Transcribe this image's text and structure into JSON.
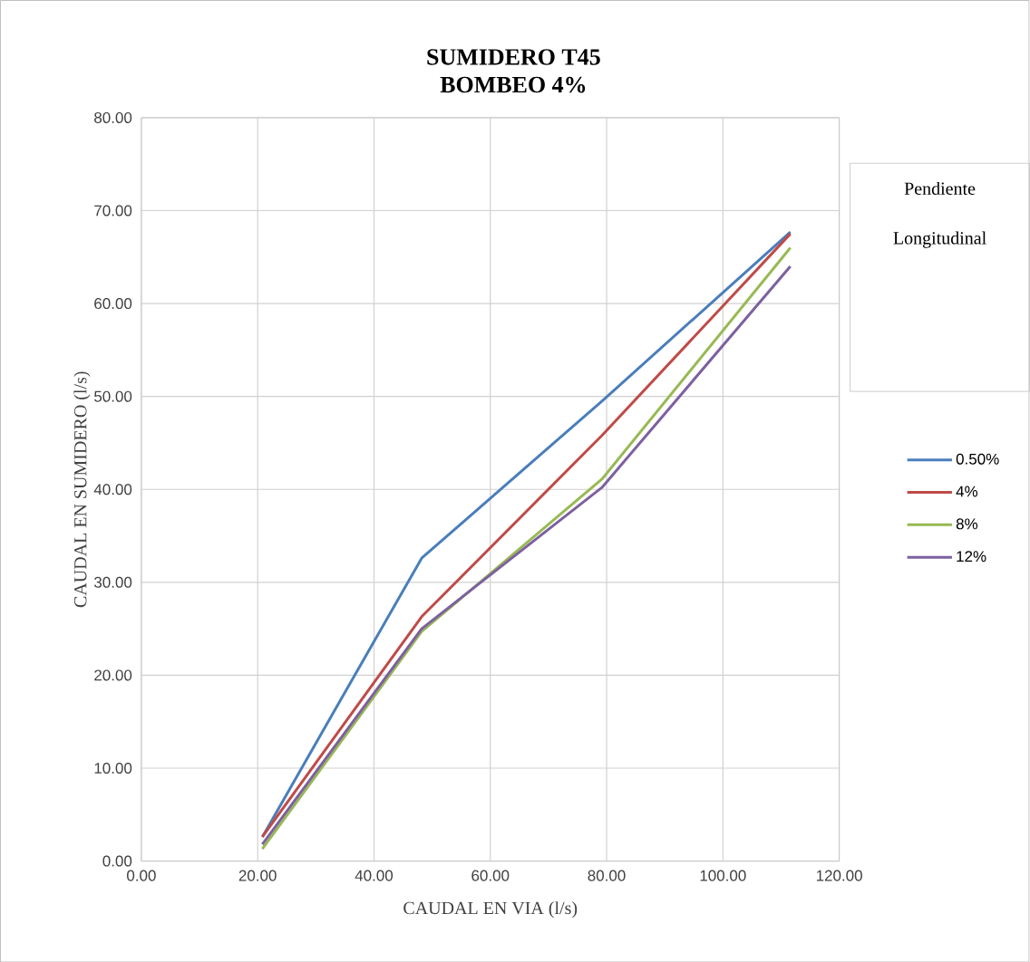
{
  "chart_data": {
    "type": "line",
    "title": "SUMIDERO T45",
    "subtitle": "BOMBEO 4%",
    "xlabel": "CAUDAL EN VIA (l/s)",
    "ylabel": "CAUDAL  EN SUMIDERO (l/s)",
    "legend_title": "Pendiente Longitudinal",
    "x": [
      20.8,
      48.2,
      79.2,
      111.6
    ],
    "series": [
      {
        "name": "0.50%",
        "color": "#4a7ebb",
        "values": [
          2.6,
          32.6,
          49.5,
          67.7
        ]
      },
      {
        "name": "4%",
        "color": "#be4b48",
        "values": [
          2.6,
          26.3,
          45.8,
          67.5
        ]
      },
      {
        "name": "8%",
        "color": "#98b954",
        "values": [
          1.3,
          24.7,
          41.1,
          66.0
        ]
      },
      {
        "name": "12%",
        "color": "#7d60a0",
        "values": [
          1.8,
          25.0,
          40.2,
          64.0
        ]
      }
    ],
    "xlim": [
      0,
      120
    ],
    "ylim": [
      0,
      80
    ],
    "xticks": [
      {
        "value": 0,
        "label": "0.00"
      },
      {
        "value": 20,
        "label": "20.00"
      },
      {
        "value": 40,
        "label": "40.00"
      },
      {
        "value": 60,
        "label": "60.00"
      },
      {
        "value": 80,
        "label": "80.00"
      },
      {
        "value": 100,
        "label": "100.00"
      },
      {
        "value": 120,
        "label": "120.00"
      }
    ],
    "yticks": [
      {
        "value": 0,
        "label": "0.00"
      },
      {
        "value": 10,
        "label": "10.00"
      },
      {
        "value": 20,
        "label": "20.00"
      },
      {
        "value": 30,
        "label": "30.00"
      },
      {
        "value": 40,
        "label": "40.00"
      },
      {
        "value": 50,
        "label": "50.00"
      },
      {
        "value": 60,
        "label": "60.00"
      },
      {
        "value": 70,
        "label": "70.00"
      },
      {
        "value": 80,
        "label": "80.00"
      }
    ],
    "grid": true,
    "legend": "right",
    "marker": "none",
    "line_style": "solid"
  }
}
